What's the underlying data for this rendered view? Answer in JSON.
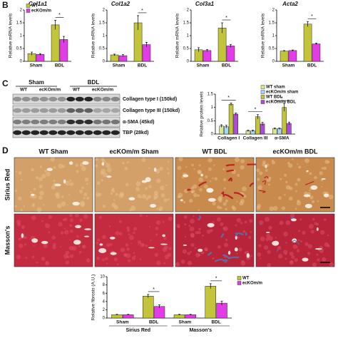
{
  "panels": [
    "B",
    "C",
    "D"
  ],
  "chart_data": [
    {
      "type": "bar",
      "title": "Col1a1",
      "ylabel": "Relative mRNA levels",
      "categories": [
        "Sham",
        "BDL"
      ],
      "series": [
        {
          "name": "WT",
          "color": "#c4c43a",
          "values": [
            0.3,
            1.42
          ],
          "errors": [
            0.06,
            0.18
          ]
        },
        {
          "name": "ecKOm/m",
          "color": "#e23ce6",
          "values": [
            0.27,
            0.85
          ],
          "errors": [
            0.03,
            0.12
          ]
        }
      ],
      "ylim": [
        0,
        2
      ],
      "yticks": [
        0,
        0.5,
        1,
        1.5,
        2
      ],
      "legend": "upper left",
      "annotations": [
        "*"
      ]
    },
    {
      "type": "bar",
      "title": "Col1a2",
      "ylabel": "Relative mRNA levels",
      "categories": [
        "Sham",
        "BDL"
      ],
      "series": [
        {
          "name": "WT",
          "color": "#c4c43a",
          "values": [
            0.25,
            1.5
          ],
          "errors": [
            0.03,
            0.28
          ]
        },
        {
          "name": "ecKOm/m",
          "color": "#e23ce6",
          "values": [
            0.22,
            0.65
          ],
          "errors": [
            0.04,
            0.09
          ]
        }
      ],
      "ylim": [
        0,
        2
      ],
      "yticks": [
        0,
        0.5,
        1,
        1.5,
        2
      ],
      "annotations": [
        "*"
      ]
    },
    {
      "type": "bar",
      "title": "Col3a1",
      "ylabel": "Relative mRNA levels",
      "categories": [
        "Sham",
        "BDL"
      ],
      "series": [
        {
          "name": "WT",
          "color": "#c4c43a",
          "values": [
            0.45,
            1.3
          ],
          "errors": [
            0.08,
            0.2
          ]
        },
        {
          "name": "ecKOm/m",
          "color": "#e23ce6",
          "values": [
            0.42,
            0.6
          ],
          "errors": [
            0.04,
            0.06
          ]
        }
      ],
      "ylim": [
        0,
        2
      ],
      "yticks": [
        0,
        0.5,
        1,
        1.5,
        2
      ],
      "annotations": [
        "*"
      ]
    },
    {
      "type": "bar",
      "title": "Acta2",
      "ylabel": "Relative mRNA levels",
      "categories": [
        "Sham",
        "BDL"
      ],
      "series": [
        {
          "name": "WT",
          "color": "#c4c43a",
          "values": [
            0.4,
            1.45
          ],
          "errors": [
            0.02,
            0.1
          ]
        },
        {
          "name": "ecKOm/m",
          "color": "#e23ce6",
          "values": [
            0.42,
            0.68
          ],
          "errors": [
            0.02,
            0.03
          ]
        }
      ],
      "ylim": [
        0,
        2
      ],
      "yticks": [
        0,
        0.5,
        1,
        1.5,
        2
      ],
      "annotations": [
        "*"
      ]
    },
    {
      "type": "bar",
      "ylabel": "Relative protein levels",
      "categories": [
        "Collagen I",
        "Collagen III",
        "α-SMA"
      ],
      "series": [
        {
          "name": "WT sham",
          "color": "#d8e890",
          "values": [
            0.3,
            0.12,
            0.2
          ],
          "errors": [
            0.05,
            0.03,
            0.03
          ]
        },
        {
          "name": "ecKOm/m sham",
          "color": "#a8d8f0",
          "values": [
            0.28,
            0.12,
            0.2
          ],
          "errors": [
            0.05,
            0.03,
            0.03
          ]
        },
        {
          "name": "WT BDL",
          "color": "#c4c43a",
          "values": [
            1.12,
            0.65,
            1.0
          ],
          "errors": [
            0.05,
            0.08,
            0.15
          ]
        },
        {
          "name": "ecKOm/m BDL",
          "color": "#b04ad8",
          "values": [
            0.75,
            0.38,
            0.4
          ],
          "errors": [
            0.04,
            0.06,
            0.05
          ]
        }
      ],
      "ylim": [
        0,
        1.5
      ],
      "yticks": [
        0,
        0.5,
        1,
        1.5
      ],
      "legend": "upper right",
      "annotations": [
        "*",
        "*",
        "*"
      ]
    },
    {
      "type": "bar",
      "ylabel": "Relative fibrosis (A.U.)",
      "categories": [
        "Sham",
        "BDL",
        "Sham",
        "BDL"
      ],
      "groups": [
        "Sirius Red",
        "Masson's"
      ],
      "series": [
        {
          "name": "WT",
          "color": "#c4c43a",
          "values": [
            0.8,
            5.3,
            0.8,
            7.7
          ],
          "errors": [
            0.1,
            0.4,
            0.1,
            0.6
          ]
        },
        {
          "name": "ecKOm/m",
          "color": "#e23ce6",
          "values": [
            0.8,
            2.8,
            0.8,
            3.6
          ],
          "errors": [
            0.1,
            0.4,
            0.1,
            0.5
          ]
        }
      ],
      "ylim": [
        0,
        10
      ],
      "yticks": [
        0,
        2,
        4,
        6,
        8,
        10
      ],
      "legend": "right",
      "annotations": [
        "*",
        "*"
      ]
    }
  ],
  "blot": {
    "groups": [
      "Sham",
      "BDL"
    ],
    "lanes": [
      "WT",
      "ecKOm/m",
      "WT",
      "ecKOm/m"
    ],
    "bands": [
      "Collagen type I (150kd)",
      "Collagen type III (150kd)",
      "α-SMA (45kd)",
      "TBP (28kd)"
    ]
  },
  "micrographs": {
    "columns": [
      "WT Sham",
      "ecKOm/m Sham",
      "WT BDL",
      "ecKOm/m BDL"
    ],
    "rows": [
      "Sirius Red",
      "Masson's"
    ]
  }
}
